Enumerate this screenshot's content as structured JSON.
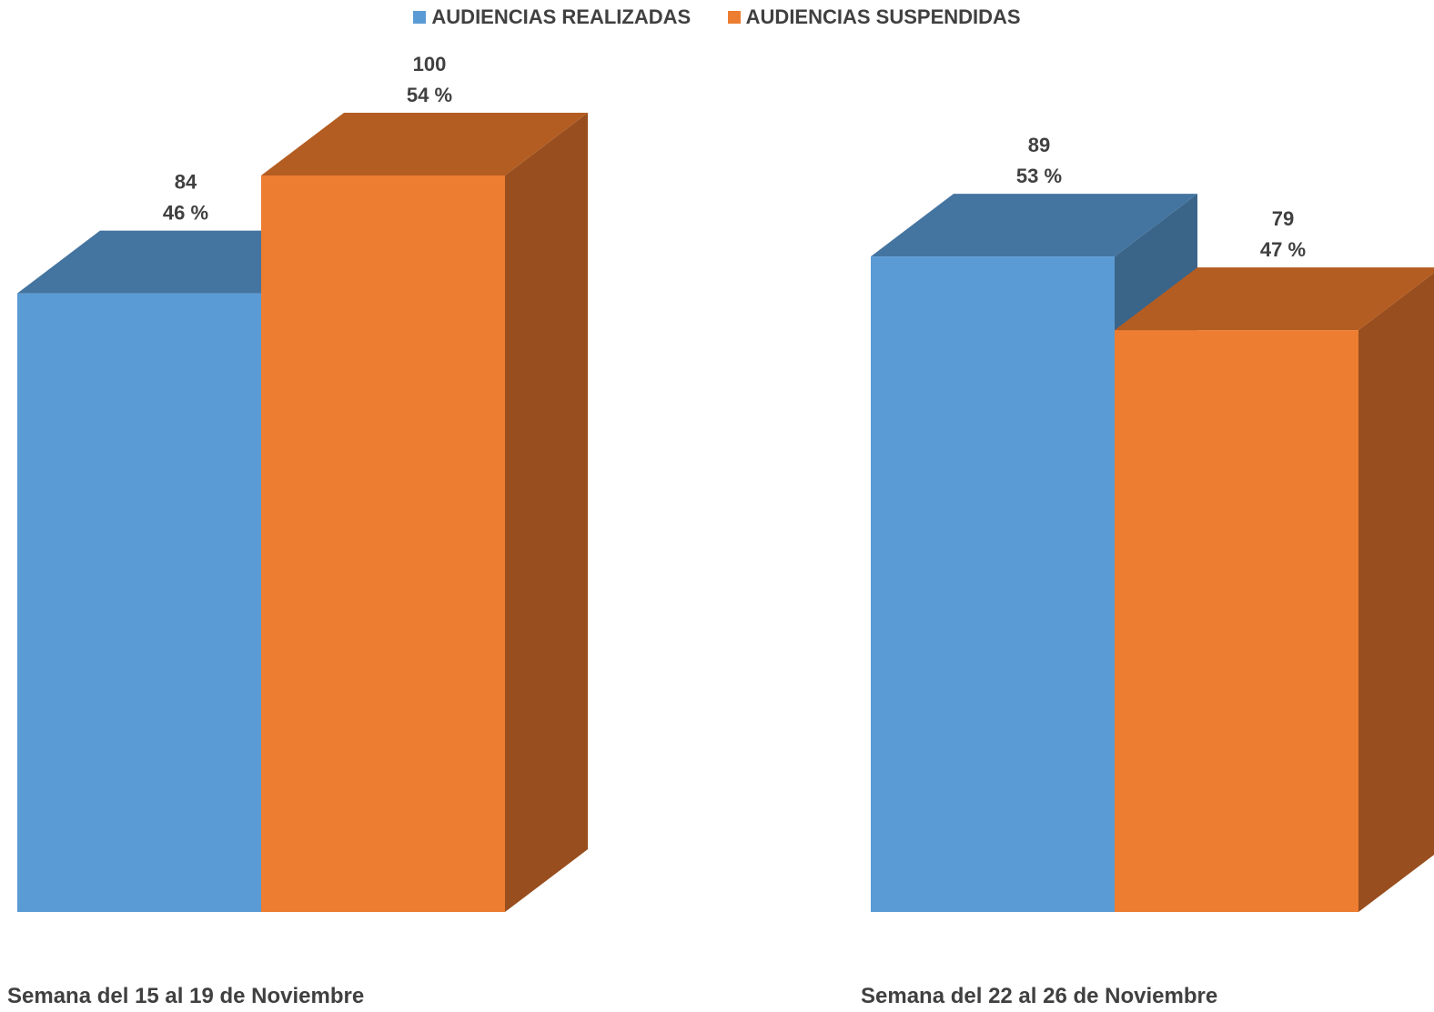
{
  "chart_data": {
    "type": "bar",
    "categories": [
      "Semana del 15 al 19 de Noviembre",
      "Semana del 22 al 26 de Noviembre"
    ],
    "series": [
      {
        "name": "AUDIENCIAS REALIZADAS",
        "values": [
          84,
          89
        ],
        "percent_labels": [
          "46 %",
          "53 %"
        ],
        "color": "#5B9BD5",
        "top_color": "#4474A0",
        "side_color": "#3A6589"
      },
      {
        "name": "AUDIENCIAS SUSPENDIDAS",
        "values": [
          100,
          79
        ],
        "percent_labels": [
          "54 %",
          "47 %"
        ],
        "color": "#ED7D31",
        "top_color": "#B45D22",
        "side_color": "#984E1E"
      }
    ],
    "legend_position": "top",
    "grid": false,
    "three_d": true,
    "ylim": [
      0,
      100
    ]
  }
}
